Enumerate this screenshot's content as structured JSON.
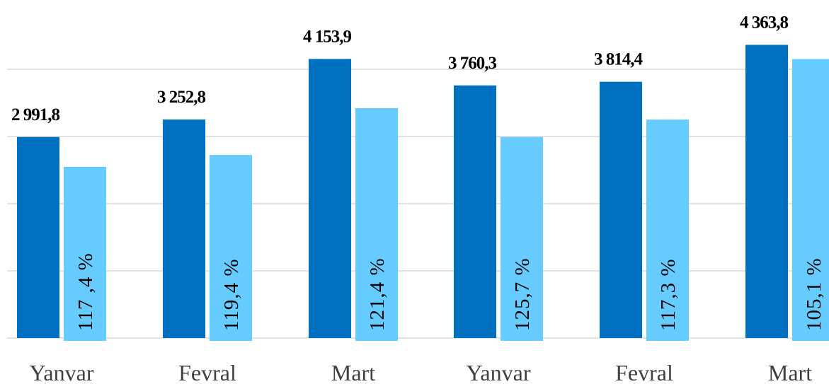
{
  "chart_data": {
    "type": "bar",
    "categories": [
      "Yanvar",
      "Fevral",
      "Mart",
      "Yanvar",
      "Fevral",
      "Mart"
    ],
    "series": [
      {
        "values": [
          2991.8,
          3252.8,
          4153.9,
          3760.3,
          3814.4,
          4363.8
        ],
        "labels": [
          "2 991,8",
          "3 252,8",
          "4 153,9",
          "3 760,3",
          "3 814,4",
          "4 363,8"
        ],
        "color": "#0070c0"
      },
      {
        "values": [
          2548.4,
          2724.5,
          3421.7,
          2992.0,
          3251.8,
          4152.0
        ],
        "labels": [
          "117 ,4 %",
          "119,4 %",
          "121,4 %",
          "125,7 %",
          "117,3 %",
          "105,1 %"
        ],
        "color": "#66ccff"
      }
    ],
    "ylim": [
      0,
      5000
    ],
    "grid": true,
    "legend": "none"
  }
}
